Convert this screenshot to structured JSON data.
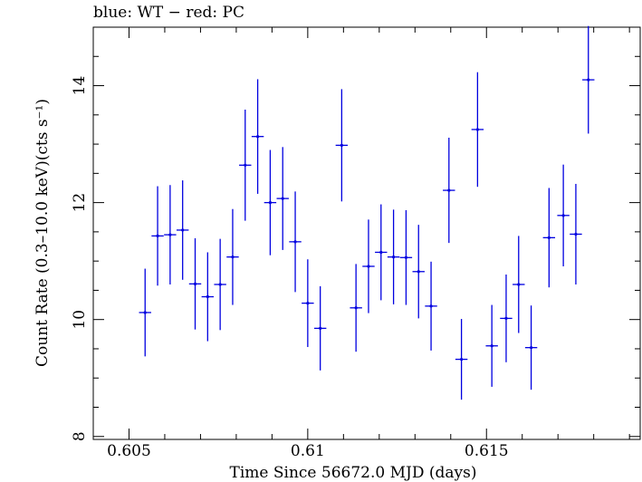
{
  "chart_data": {
    "type": "scatter",
    "title": "blue: WT − red: PC",
    "xlabel": "Time Since 56672.0 MJD (days)",
    "ylabel": "Count Rate (0.3–10.0 keV)(cts s⁻¹)",
    "xlim": [
      0.604,
      0.6193
    ],
    "ylim": [
      7.95,
      15.0
    ],
    "x_ticks": [
      0.605,
      0.61,
      0.615
    ],
    "x_tick_labels": [
      "0.605",
      "0.61",
      "0.615"
    ],
    "y_ticks": [
      8,
      10,
      12,
      14
    ],
    "y_tick_labels": [
      "8",
      "10",
      "12",
      "14"
    ],
    "grid": false,
    "series": [
      {
        "color": "#0000e0",
        "x_halfwidth": 0.00017,
        "points": [
          {
            "x": 0.60545,
            "y": 10.12,
            "err": 0.75
          },
          {
            "x": 0.6058,
            "y": 11.43,
            "err": 0.85
          },
          {
            "x": 0.60615,
            "y": 11.45,
            "err": 0.85
          },
          {
            "x": 0.6065,
            "y": 11.53,
            "err": 0.85
          },
          {
            "x": 0.60685,
            "y": 10.61,
            "err": 0.78
          },
          {
            "x": 0.6072,
            "y": 10.39,
            "err": 0.76
          },
          {
            "x": 0.60755,
            "y": 10.6,
            "err": 0.78
          },
          {
            "x": 0.6079,
            "y": 11.07,
            "err": 0.82
          },
          {
            "x": 0.60825,
            "y": 12.64,
            "err": 0.95
          },
          {
            "x": 0.6086,
            "y": 13.13,
            "err": 0.98
          },
          {
            "x": 0.60895,
            "y": 12.0,
            "err": 0.9
          },
          {
            "x": 0.6093,
            "y": 12.07,
            "err": 0.88
          },
          {
            "x": 0.60965,
            "y": 11.33,
            "err": 0.86
          },
          {
            "x": 0.61,
            "y": 10.28,
            "err": 0.75
          },
          {
            "x": 0.61035,
            "y": 9.85,
            "err": 0.72
          },
          {
            "x": 0.61095,
            "y": 12.98,
            "err": 0.96
          },
          {
            "x": 0.61135,
            "y": 10.2,
            "err": 0.75
          },
          {
            "x": 0.6117,
            "y": 10.91,
            "err": 0.8
          },
          {
            "x": 0.61205,
            "y": 11.15,
            "err": 0.82
          },
          {
            "x": 0.6124,
            "y": 11.07,
            "err": 0.81
          },
          {
            "x": 0.61275,
            "y": 11.06,
            "err": 0.81
          },
          {
            "x": 0.6131,
            "y": 10.82,
            "err": 0.8
          },
          {
            "x": 0.61345,
            "y": 10.23,
            "err": 0.76
          },
          {
            "x": 0.61395,
            "y": 12.21,
            "err": 0.9
          },
          {
            "x": 0.6143,
            "y": 9.32,
            "err": 0.69
          },
          {
            "x": 0.61475,
            "y": 13.25,
            "err": 0.98
          },
          {
            "x": 0.61515,
            "y": 9.55,
            "err": 0.7
          },
          {
            "x": 0.61555,
            "y": 10.02,
            "err": 0.75
          },
          {
            "x": 0.6159,
            "y": 10.6,
            "err": 0.83
          },
          {
            "x": 0.61625,
            "y": 9.52,
            "err": 0.72
          },
          {
            "x": 0.61675,
            "y": 11.4,
            "err": 0.85
          },
          {
            "x": 0.61715,
            "y": 11.78,
            "err": 0.87
          },
          {
            "x": 0.6175,
            "y": 11.46,
            "err": 0.86
          },
          {
            "x": 0.61785,
            "y": 14.1,
            "err": 0.92
          }
        ]
      }
    ]
  }
}
